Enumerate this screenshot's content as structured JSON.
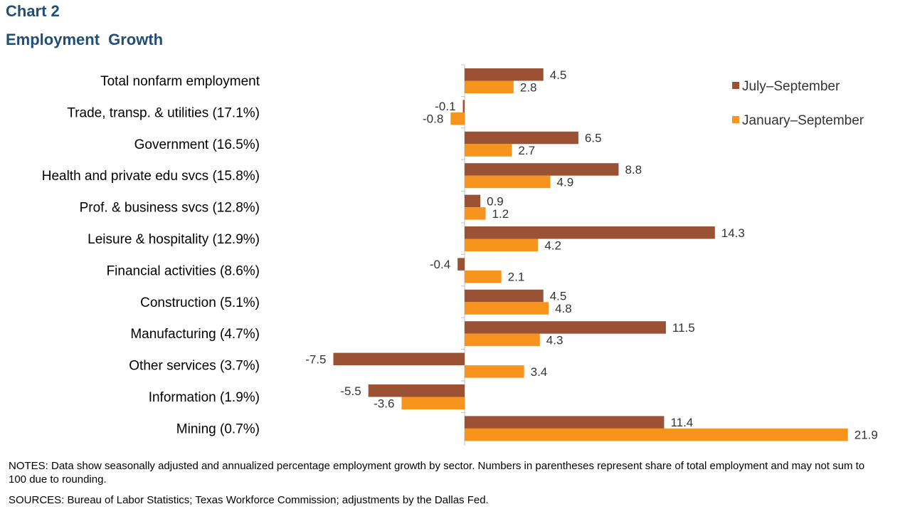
{
  "header": {
    "chart_number": "Chart 2",
    "title": "Employment  Growth"
  },
  "chart_data": {
    "type": "bar",
    "orientation": "horizontal",
    "categories": [
      "Total nonfarm employment",
      "Trade, transp. & utilities (17.1%)",
      "Government (16.5%)",
      "Health and private edu svcs (15.8%)",
      "Prof. & business svcs (12.8%)",
      "Leisure & hospitality (12.9%)",
      "Financial activities (8.6%)",
      "Construction (5.1%)",
      "Manufacturing (4.7%)",
      "Other services (3.7%)",
      "Information (1.9%)",
      "Mining (0.7%)"
    ],
    "series": [
      {
        "name": "July–September",
        "color": "#9b5234",
        "values": [
          4.5,
          -0.1,
          6.5,
          8.8,
          0.9,
          14.3,
          -0.4,
          4.5,
          11.5,
          -7.5,
          -5.5,
          11.4
        ]
      },
      {
        "name": "January–September",
        "color": "#f7941d",
        "values": [
          2.8,
          -0.8,
          2.7,
          4.9,
          1.2,
          4.2,
          2.1,
          4.8,
          4.3,
          3.4,
          -3.6,
          21.9
        ]
      }
    ],
    "value_labels": {
      "July–September": [
        "4.5",
        "-0.1",
        "6.5",
        "8.8",
        "0.9",
        "14.3",
        "-0.4",
        "4.5",
        "11.5",
        "-7.5",
        "-5.5",
        "11.4"
      ],
      "January–September": [
        "2.8",
        "-0.8",
        "2.7",
        "4.9",
        "1.2",
        "4.2",
        "2.1",
        "4.8",
        "4.3",
        "3.4",
        "-3.6",
        "21.9"
      ]
    },
    "grid": false,
    "legend_position": "top-right"
  },
  "footer": {
    "notes": "NOTES: Data show seasonally adjusted and annualized percentage employment growth by sector. Numbers in parentheses represent share of total employment and may not sum to 100 due to rounding.",
    "sources": "SOURCES: Bureau of Labor Statistics; Texas Workforce Commission; adjustments by the Dallas Fed."
  }
}
